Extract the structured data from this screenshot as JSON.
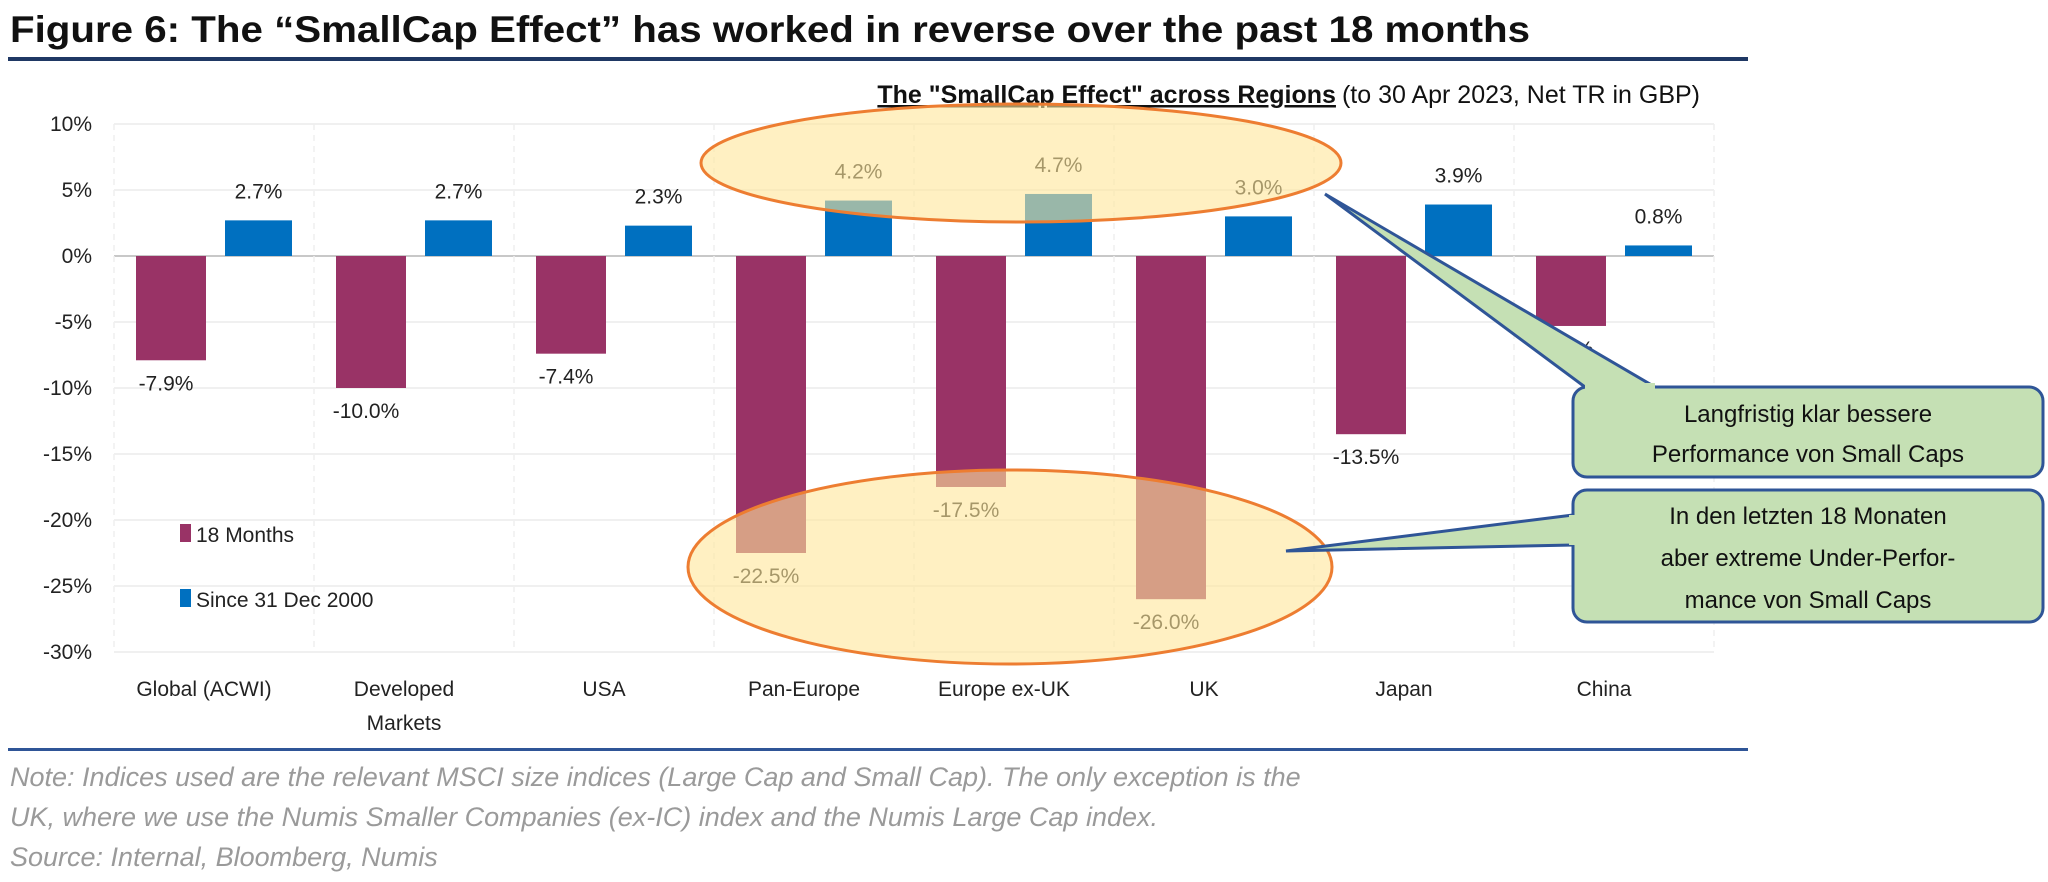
{
  "figure_title": "Figure 6: The “SmallCap Effect” has worked in reverse over the past 18 months",
  "chart_data": {
    "type": "bar",
    "title": "The \"SmallCap Effect\" across Regions",
    "subtitle": "(to 30 Apr 2023, Net TR in GBP)",
    "categories": [
      [
        "Global (ACWI)"
      ],
      [
        "Developed",
        "Markets"
      ],
      [
        "USA"
      ],
      [
        "Pan-Europe"
      ],
      [
        "Europe ex-UK"
      ],
      [
        "UK"
      ],
      [
        "Japan"
      ],
      [
        "China"
      ]
    ],
    "series": [
      {
        "name": "18 Months",
        "color": "#993366",
        "values": [
          -7.9,
          -10.0,
          -7.4,
          -22.5,
          -17.5,
          -26.0,
          -13.5,
          -5.3
        ],
        "labels": [
          "-7.9%",
          "-10.0%",
          "-7.4%",
          "-22.5%",
          "-17.5%",
          "-26.0%",
          "-13.5%",
          "-5.3%"
        ]
      },
      {
        "name": "Since 31 Dec 2000",
        "color": "#0070c0",
        "values": [
          2.7,
          2.7,
          2.3,
          4.2,
          4.7,
          3.0,
          3.9,
          0.8
        ],
        "labels": [
          "2.7%",
          "2.7%",
          "2.3%",
          "4.2%",
          "4.7%",
          "3.0%",
          "3.9%",
          "0.8%"
        ]
      }
    ],
    "ylim": [
      -30,
      10
    ],
    "yticks": [
      "10%",
      "5%",
      "0%",
      "-5%",
      "-10%",
      "-15%",
      "-20%",
      "-25%",
      "-30%"
    ],
    "grid": true,
    "legend_position": "bottom-left inside"
  },
  "annotations": {
    "callout_top": [
      "Langfristig klar bessere",
      "Performance von Small Caps"
    ],
    "callout_bottom": [
      "In den letzten 18 Monaten",
      "aber extreme Under-Perfor-",
      "mance von Small Caps"
    ],
    "ellipse_fill": "#ffe699",
    "ellipse_stroke": "#ed7d31",
    "callout_fill": "#c5e0b4",
    "callout_stroke": "#2f5597"
  },
  "notes": [
    "Note: Indices used are the relevant MSCI size indices (Large Cap and Small Cap).  The only exception is the",
    "UK, where we use the Numis Smaller Companies (ex-IC) index and the Numis Large Cap index.",
    "Source: Internal, Bloomberg, Numis"
  ]
}
